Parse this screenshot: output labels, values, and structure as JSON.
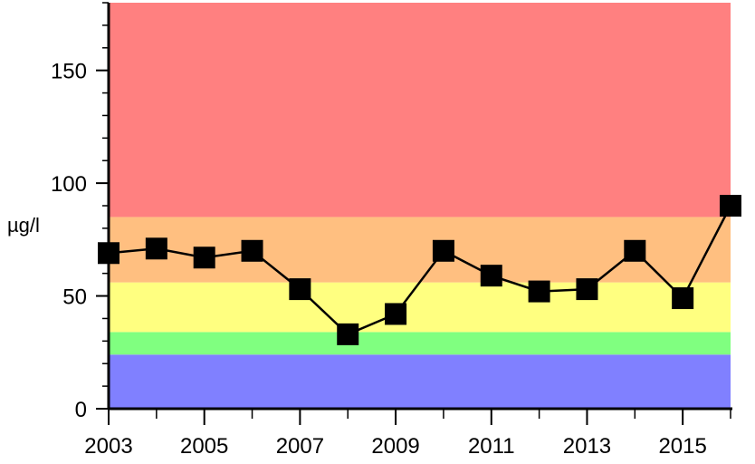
{
  "chart_data": {
    "type": "line",
    "title": "",
    "xlabel": "",
    "ylabel": "µg/l",
    "xlim": [
      2003,
      2016
    ],
    "ylim": [
      0,
      180
    ],
    "x_ticks": [
      2003,
      2005,
      2007,
      2009,
      2011,
      2013,
      2015
    ],
    "x_minor_ticks": [
      2004,
      2006,
      2008,
      2010,
      2012,
      2014,
      2016
    ],
    "y_ticks": [
      0,
      50,
      100,
      150
    ],
    "grid": false,
    "legend": "none",
    "background_bands": [
      {
        "from": 0,
        "to": 24,
        "color": "#8080ff"
      },
      {
        "from": 24,
        "to": 34,
        "color": "#80ff80"
      },
      {
        "from": 34,
        "to": 56,
        "color": "#ffff80"
      },
      {
        "from": 56,
        "to": 85,
        "color": "#ffbf80"
      },
      {
        "from": 85,
        "to": 180,
        "color": "#ff8080"
      }
    ],
    "series": [
      {
        "color": "#000000",
        "marker": "square",
        "x": [
          2003,
          2004,
          2005,
          2006,
          2007,
          2008,
          2009,
          2010,
          2011,
          2012,
          2013,
          2014,
          2015,
          2016
        ],
        "values": [
          69,
          71,
          67,
          70,
          53,
          33,
          42,
          70,
          59,
          52,
          53,
          70,
          49,
          90
        ]
      }
    ]
  }
}
